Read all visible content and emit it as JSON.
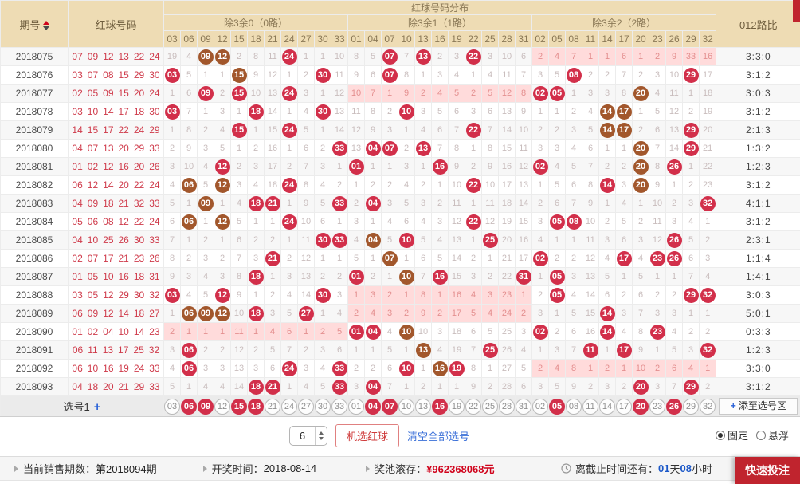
{
  "header": {
    "period_label": "期号",
    "red_balls_label": "红球号码",
    "distribution_label": "红球号码分布",
    "ratio_label": "012路比",
    "sections": [
      {
        "title": "除3余0（0路）",
        "cols": [
          "03",
          "06",
          "09",
          "12",
          "15",
          "18",
          "21",
          "24",
          "27",
          "30",
          "33"
        ]
      },
      {
        "title": "除3余1（1路）",
        "cols": [
          "01",
          "04",
          "07",
          "10",
          "13",
          "16",
          "19",
          "22",
          "25",
          "28",
          "31"
        ]
      },
      {
        "title": "除3余2（2路）",
        "cols": [
          "02",
          "05",
          "08",
          "11",
          "14",
          "17",
          "20",
          "23",
          "26",
          "29",
          "32"
        ]
      }
    ]
  },
  "rows": [
    {
      "period": "2018075",
      "balls": [
        "07",
        "09",
        "12",
        "13",
        "22",
        "24"
      ],
      "ratio": "3:3:0",
      "pink": 2,
      "group_start": false,
      "cells": [
        "19",
        "4",
        "b09",
        "b12",
        "2",
        "8",
        "11",
        "r24",
        "1",
        "1",
        "10",
        "8",
        "5",
        "r07",
        "7",
        "r13",
        "2",
        "3",
        "r22",
        "3",
        "10",
        "6",
        "2",
        "4",
        "7",
        "1",
        "1",
        "6",
        "1",
        "2",
        "9",
        "33",
        "16"
      ]
    },
    {
      "period": "2018076",
      "balls": [
        "03",
        "07",
        "08",
        "15",
        "29",
        "30"
      ],
      "ratio": "3:1:2",
      "pink": null,
      "group_start": false,
      "cells": [
        "r03",
        "5",
        "1",
        "1",
        "b15",
        "9",
        "12",
        "1",
        "2",
        "r30",
        "11",
        "9",
        "6",
        "r07",
        "8",
        "1",
        "3",
        "4",
        "1",
        "4",
        "11",
        "7",
        "3",
        "5",
        "r08",
        "2",
        "2",
        "7",
        "2",
        "3",
        "10",
        "r29",
        "17"
      ]
    },
    {
      "period": "2018077",
      "balls": [
        "02",
        "05",
        "09",
        "15",
        "20",
        "24"
      ],
      "ratio": "3:0:3",
      "pink": 1,
      "group_start": false,
      "cells": [
        "1",
        "6",
        "r09",
        "2",
        "r15",
        "10",
        "13",
        "r24",
        "3",
        "1",
        "12",
        "10",
        "7",
        "1",
        "9",
        "2",
        "4",
        "5",
        "2",
        "5",
        "12",
        "8",
        "r02",
        "r05",
        "1",
        "3",
        "3",
        "8",
        "b20",
        "4",
        "11",
        "1",
        "18"
      ]
    },
    {
      "period": "2018078",
      "balls": [
        "03",
        "10",
        "14",
        "17",
        "18",
        "30"
      ],
      "ratio": "3:1:2",
      "pink": null,
      "group_start": false,
      "cells": [
        "r03",
        "7",
        "1",
        "3",
        "1",
        "r18",
        "14",
        "1",
        "4",
        "r30",
        "13",
        "11",
        "8",
        "2",
        "r10",
        "3",
        "5",
        "6",
        "3",
        "6",
        "13",
        "9",
        "1",
        "1",
        "2",
        "4",
        "b14",
        "b17",
        "1",
        "5",
        "12",
        "2",
        "19"
      ]
    },
    {
      "period": "2018079",
      "balls": [
        "14",
        "15",
        "17",
        "22",
        "24",
        "29"
      ],
      "ratio": "2:1:3",
      "pink": null,
      "group_start": true,
      "cells": [
        "1",
        "8",
        "2",
        "4",
        "r15",
        "1",
        "15",
        "r24",
        "5",
        "1",
        "14",
        "12",
        "9",
        "3",
        "1",
        "4",
        "6",
        "7",
        "r22",
        "7",
        "14",
        "10",
        "2",
        "2",
        "3",
        "5",
        "b14",
        "b17",
        "2",
        "6",
        "13",
        "r29",
        "20"
      ]
    },
    {
      "period": "2018080",
      "balls": [
        "04",
        "07",
        "13",
        "20",
        "29",
        "33"
      ],
      "ratio": "1:3:2",
      "pink": null,
      "group_start": false,
      "cells": [
        "2",
        "9",
        "3",
        "5",
        "1",
        "2",
        "16",
        "1",
        "6",
        "2",
        "r33",
        "13",
        "r04",
        "r07",
        "2",
        "r13",
        "7",
        "8",
        "1",
        "8",
        "15",
        "11",
        "3",
        "3",
        "4",
        "6",
        "1",
        "1",
        "b20",
        "7",
        "14",
        "r29",
        "21"
      ]
    },
    {
      "period": "2018081",
      "balls": [
        "01",
        "02",
        "12",
        "16",
        "20",
        "26"
      ],
      "ratio": "1:2:3",
      "pink": null,
      "group_start": false,
      "cells": [
        "3",
        "10",
        "4",
        "r12",
        "2",
        "3",
        "17",
        "2",
        "7",
        "3",
        "1",
        "r01",
        "1",
        "1",
        "3",
        "1",
        "r16",
        "9",
        "2",
        "9",
        "16",
        "12",
        "r02",
        "4",
        "5",
        "7",
        "2",
        "2",
        "b20",
        "8",
        "r26",
        "1",
        "22"
      ]
    },
    {
      "period": "2018082",
      "balls": [
        "06",
        "12",
        "14",
        "20",
        "22",
        "24"
      ],
      "ratio": "3:1:2",
      "pink": null,
      "group_start": false,
      "cells": [
        "4",
        "b06",
        "5",
        "b12",
        "3",
        "4",
        "18",
        "r24",
        "8",
        "4",
        "2",
        "1",
        "2",
        "2",
        "4",
        "2",
        "1",
        "10",
        "r22",
        "10",
        "17",
        "13",
        "1",
        "5",
        "6",
        "8",
        "r14",
        "3",
        "b20",
        "9",
        "1",
        "2",
        "23"
      ]
    },
    {
      "period": "2018083",
      "balls": [
        "04",
        "09",
        "18",
        "21",
        "32",
        "33"
      ],
      "ratio": "4:1:1",
      "pink": null,
      "group_start": false,
      "cells": [
        "5",
        "1",
        "b09",
        "1",
        "4",
        "r18",
        "r21",
        "1",
        "9",
        "5",
        "r33",
        "2",
        "r04",
        "3",
        "5",
        "3",
        "2",
        "11",
        "1",
        "11",
        "18",
        "14",
        "2",
        "6",
        "7",
        "9",
        "1",
        "4",
        "1",
        "10",
        "2",
        "3",
        "r32"
      ]
    },
    {
      "period": "2018084",
      "balls": [
        "05",
        "06",
        "08",
        "12",
        "22",
        "24"
      ],
      "ratio": "3:1:2",
      "pink": null,
      "group_start": true,
      "cells": [
        "6",
        "b06",
        "1",
        "b12",
        "5",
        "1",
        "1",
        "r24",
        "10",
        "6",
        "1",
        "3",
        "1",
        "4",
        "6",
        "4",
        "3",
        "12",
        "r22",
        "12",
        "19",
        "15",
        "3",
        "r05",
        "r08",
        "10",
        "2",
        "5",
        "2",
        "11",
        "3",
        "4",
        "1"
      ]
    },
    {
      "period": "2018085",
      "balls": [
        "04",
        "10",
        "25",
        "26",
        "30",
        "33"
      ],
      "ratio": "2:3:1",
      "pink": null,
      "group_start": false,
      "cells": [
        "7",
        "1",
        "2",
        "1",
        "6",
        "2",
        "2",
        "1",
        "11",
        "r30",
        "r33",
        "4",
        "b04",
        "5",
        "r10",
        "5",
        "4",
        "13",
        "1",
        "r25",
        "20",
        "16",
        "4",
        "1",
        "1",
        "11",
        "3",
        "6",
        "3",
        "12",
        "r26",
        "5",
        "2"
      ]
    },
    {
      "period": "2018086",
      "balls": [
        "02",
        "07",
        "17",
        "21",
        "23",
        "26"
      ],
      "ratio": "1:1:4",
      "pink": null,
      "group_start": false,
      "cells": [
        "8",
        "2",
        "3",
        "2",
        "7",
        "3",
        "r21",
        "2",
        "12",
        "1",
        "1",
        "5",
        "1",
        "b07",
        "1",
        "6",
        "5",
        "14",
        "2",
        "1",
        "21",
        "17",
        "r02",
        "2",
        "2",
        "12",
        "4",
        "r17",
        "4",
        "r23",
        "r26",
        "6",
        "3"
      ]
    },
    {
      "period": "2018087",
      "balls": [
        "01",
        "05",
        "10",
        "16",
        "18",
        "31"
      ],
      "ratio": "1:4:1",
      "pink": null,
      "group_start": false,
      "cells": [
        "9",
        "3",
        "4",
        "3",
        "8",
        "r18",
        "1",
        "3",
        "13",
        "2",
        "2",
        "r01",
        "2",
        "1",
        "b10",
        "7",
        "r16",
        "15",
        "3",
        "2",
        "22",
        "r31",
        "1",
        "r05",
        "3",
        "13",
        "5",
        "1",
        "5",
        "1",
        "1",
        "7",
        "4"
      ]
    },
    {
      "period": "2018088",
      "balls": [
        "03",
        "05",
        "12",
        "29",
        "30",
        "32"
      ],
      "ratio": "3:0:3",
      "pink": 1,
      "group_start": false,
      "cells": [
        "r03",
        "4",
        "5",
        "r12",
        "9",
        "1",
        "2",
        "4",
        "14",
        "r30",
        "3",
        "1",
        "3",
        "2",
        "1",
        "8",
        "1",
        "16",
        "4",
        "3",
        "23",
        "1",
        "2",
        "r05",
        "4",
        "14",
        "6",
        "2",
        "6",
        "2",
        "2",
        "r29",
        "r32"
      ]
    },
    {
      "period": "2018089",
      "balls": [
        "06",
        "09",
        "12",
        "14",
        "18",
        "27"
      ],
      "ratio": "5:0:1",
      "pink": 1,
      "group_start": true,
      "cells": [
        "1",
        "b06",
        "b09",
        "b12",
        "10",
        "r18",
        "3",
        "5",
        "r27",
        "1",
        "4",
        "2",
        "4",
        "3",
        "2",
        "9",
        "2",
        "17",
        "5",
        "4",
        "24",
        "2",
        "3",
        "1",
        "5",
        "15",
        "r14",
        "3",
        "7",
        "3",
        "3",
        "1",
        "1"
      ]
    },
    {
      "period": "2018090",
      "balls": [
        "01",
        "02",
        "04",
        "10",
        "14",
        "23"
      ],
      "ratio": "0:3:3",
      "pink": 0,
      "group_start": false,
      "cells": [
        "2",
        "1",
        "1",
        "1",
        "11",
        "1",
        "4",
        "6",
        "1",
        "2",
        "5",
        "r01",
        "r04",
        "4",
        "b10",
        "10",
        "3",
        "18",
        "6",
        "5",
        "25",
        "3",
        "r02",
        "2",
        "6",
        "16",
        "r14",
        "4",
        "8",
        "r23",
        "4",
        "2",
        "2"
      ]
    },
    {
      "period": "2018091",
      "balls": [
        "06",
        "11",
        "13",
        "17",
        "25",
        "32"
      ],
      "ratio": "1:2:3",
      "pink": null,
      "group_start": false,
      "cells": [
        "3",
        "r06",
        "2",
        "2",
        "12",
        "2",
        "5",
        "7",
        "2",
        "3",
        "6",
        "1",
        "1",
        "5",
        "1",
        "b13",
        "4",
        "19",
        "7",
        "r25",
        "26",
        "4",
        "1",
        "3",
        "7",
        "r11",
        "1",
        "r17",
        "9",
        "1",
        "5",
        "3",
        "r32"
      ]
    },
    {
      "period": "2018092",
      "balls": [
        "06",
        "10",
        "16",
        "19",
        "24",
        "33"
      ],
      "ratio": "3:3:0",
      "pink": 2,
      "group_start": false,
      "cells": [
        "4",
        "r06",
        "3",
        "3",
        "13",
        "3",
        "6",
        "r24",
        "3",
        "4",
        "r33",
        "2",
        "2",
        "6",
        "r10",
        "1",
        "b16",
        "r19",
        "8",
        "1",
        "27",
        "5",
        "2",
        "4",
        "8",
        "1",
        "2",
        "1",
        "10",
        "2",
        "6",
        "4",
        "1"
      ]
    },
    {
      "period": "2018093",
      "balls": [
        "04",
        "18",
        "20",
        "21",
        "29",
        "33"
      ],
      "ratio": "3:1:2",
      "pink": null,
      "group_start": false,
      "cells": [
        "5",
        "1",
        "4",
        "4",
        "14",
        "r18",
        "r21",
        "1",
        "4",
        "5",
        "r33",
        "3",
        "r04",
        "7",
        "1",
        "2",
        "1",
        "1",
        "9",
        "2",
        "28",
        "6",
        "3",
        "5",
        "9",
        "2",
        "3",
        "2",
        "r20",
        "3",
        "7",
        "r29",
        "2"
      ]
    }
  ],
  "selection": {
    "label": "选号1",
    "plus": "+",
    "add_plus": "+",
    "add_label": "添至选号区",
    "selected": [
      "06",
      "09",
      "15",
      "18",
      "04",
      "07",
      "16",
      "05",
      "20",
      "26"
    ]
  },
  "controls": {
    "count": "6",
    "random_label": "机选红球",
    "clear_label": "清空全部选号",
    "fixed_label": "固定",
    "float_label": "悬浮"
  },
  "footer": {
    "sale_label": "当前销售期数：",
    "sale_value": "第2018094期",
    "draw_label": "开奖时间：",
    "draw_value": "2018-08-14",
    "jackpot_label": "奖池滚存：",
    "jackpot_value": "¥962368068元",
    "deadline_label": "离截止时间还有：",
    "deadline_days": "01",
    "deadline_days_unit": "天",
    "deadline_hours": "08",
    "deadline_hours_unit": "小时",
    "quick_bet": "快速投注"
  },
  "colors": {
    "ball_red": "#d22f4a",
    "ball_brown": "#a2572c",
    "header_bg": "#eedcb4",
    "pink_highlight": "#ffdbdb",
    "accent_red": "#c0242e",
    "link_blue": "#3a6fd8"
  }
}
